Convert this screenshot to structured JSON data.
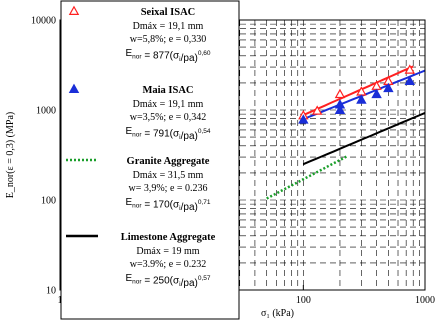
{
  "chart_data": {
    "type": "scatter",
    "x_scale": "log",
    "y_scale": "log",
    "xlim": [
      1,
      1000
    ],
    "ylim": [
      10,
      10000
    ],
    "xlabel": "σ₁ (kPa)",
    "ylabel": "E_nor(ε = 0,3) (MPa)",
    "x_ticks": [
      {
        "value": 1,
        "label": "1"
      },
      {
        "value": 10,
        "label": "10"
      },
      {
        "value": 100,
        "label": "100"
      },
      {
        "value": 1000,
        "label": "1000"
      }
    ],
    "y_ticks": [
      {
        "value": 10,
        "label": "10"
      },
      {
        "value": 100,
        "label": "100"
      },
      {
        "value": 1000,
        "label": "1000"
      },
      {
        "value": 10000,
        "label": "10000"
      }
    ],
    "grid": "dashed",
    "legend_position": "left",
    "series": [
      {
        "name": "Seixal ISAC",
        "color": "#ff2020",
        "marker": "open-triangle",
        "info": [
          "Dmáx = 19,1 mm",
          "w=5,8%; e = 0,330"
        ],
        "equation": {
          "coef": "877",
          "exp": "0,60"
        },
        "points": [
          {
            "x": 100,
            "y": 870
          },
          {
            "x": 130,
            "y": 980
          },
          {
            "x": 200,
            "y": 1500
          },
          {
            "x": 300,
            "y": 1600
          },
          {
            "x": 400,
            "y": 1850
          },
          {
            "x": 500,
            "y": 2100
          },
          {
            "x": 750,
            "y": 2800
          }
        ],
        "fit": {
          "x": [
            100,
            800
          ],
          "coef": 877,
          "exp": 0.6
        }
      },
      {
        "name": "Maia ISAC",
        "color": "#1a2ed8",
        "marker": "filled-triangle",
        "info": [
          "Dmáx = 19,1 mm",
          "w=3,5%; e = 0,342"
        ],
        "equation": {
          "coef": "791",
          "exp": "0,54"
        },
        "points": [
          {
            "x": 100,
            "y": 780
          },
          {
            "x": 200,
            "y": 1000
          },
          {
            "x": 200,
            "y": 1150
          },
          {
            "x": 300,
            "y": 1300
          },
          {
            "x": 400,
            "y": 1500
          },
          {
            "x": 500,
            "y": 1750
          },
          {
            "x": 750,
            "y": 2100
          }
        ],
        "fit": {
          "x": [
            100,
            1000
          ],
          "coef": 791,
          "exp": 0.54
        }
      },
      {
        "name": "Granite Aggregate",
        "color": "#1a9e2a",
        "marker": "dotted-line",
        "info": [
          "Dmáx = 31,5 mm",
          "w= 3,9%; e = 0.236"
        ],
        "equation": {
          "coef": "170",
          "exp": "0,71"
        },
        "points": [],
        "fit": {
          "x": [
            50,
            230
          ],
          "coef": 170,
          "exp": 0.71
        }
      },
      {
        "name": "Limestone Aggregate",
        "color": "#000000",
        "marker": "solid-line",
        "info": [
          "Dmáx = 19 mm",
          "w=3.9%; e = 0.232"
        ],
        "equation": {
          "coef": "250",
          "exp": "0,57"
        },
        "points": [],
        "fit": {
          "x": [
            100,
            1000
          ],
          "coef": 250,
          "exp": 0.57
        }
      }
    ]
  },
  "legend_eq_prefix": "E",
  "legend_eq_sub": "nor",
  "legend_eq_mid": "(σ",
  "legend_eq_sub2": "i",
  "legend_eq_end": "/pa)"
}
